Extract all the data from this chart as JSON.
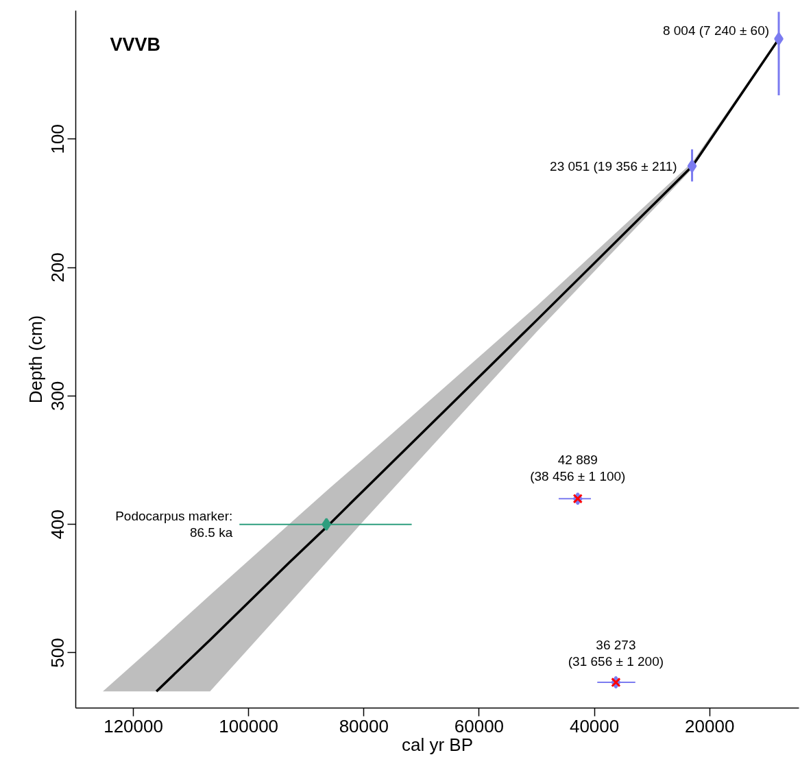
{
  "chart_data": {
    "type": "line",
    "title": "VVVB",
    "xlabel": "cal yr BP",
    "ylabel": "Depth (cm)",
    "xlim": [
      130000,
      4500
    ],
    "ylim": [
      543,
      0
    ],
    "xticks": [
      120000,
      100000,
      80000,
      60000,
      40000,
      20000
    ],
    "yticks": [
      100,
      200,
      300,
      400,
      500
    ],
    "grid": false,
    "series": [
      {
        "color": "#000000",
        "x": [
          8000,
          23000,
          50000,
          80600,
          86000,
          93000,
          106700,
          116000,
          125300
        ],
        "values": [
          22,
          121,
          241,
          376,
          400,
          430,
          490,
          530,
          null
        ],
        "lower": [
          21,
          118,
          230,
          351,
          372,
          400,
          455,
          493,
          530
        ],
        "upper": [
          23,
          123,
          250,
          400,
          427,
          462,
          530,
          530,
          530
        ]
      },
      {
        "type": "scatter",
        "marker": "diamond",
        "color": "#7b7bf0",
        "x": [
          8004,
          23051,
          42889,
          36273
        ],
        "values": [
          22,
          121,
          380,
          523
        ],
        "errors": [
          [
            1,
            66
          ],
          [
            108,
            133
          ],
          null,
          null
        ],
        "xerrors": [
          null,
          null,
          [
            40600,
            46200
          ],
          [
            32900,
            39500
          ]
        ]
      },
      {
        "type": "scatter",
        "marker": "cross",
        "color": "#ff0000",
        "x": [
          42889,
          36273
        ],
        "values": [
          380,
          523
        ]
      },
      {
        "type": "scatter",
        "marker": "diamond",
        "color": "#2e9e7e",
        "x": [
          86500
        ],
        "values": [
          400
        ],
        "xerrors": [
          [
            71700,
            101600
          ]
        ]
      }
    ],
    "annotations": [
      {
        "text": "8 004 (7 240 ± 60)",
        "x": 8004,
        "y": 22
      },
      {
        "text": "23 051 (19 356 ± 211)",
        "x": 23051,
        "y": 121
      },
      {
        "text": "42 889\n(38 456 ± 1 100)",
        "x": 42889,
        "y": 380
      },
      {
        "text": "36 273\n(31 656 ± 1 200)",
        "x": 36273,
        "y": 523
      },
      {
        "text": "Podocarpus marker:\n86.5 ka",
        "x": 101600,
        "y": 400
      }
    ]
  }
}
